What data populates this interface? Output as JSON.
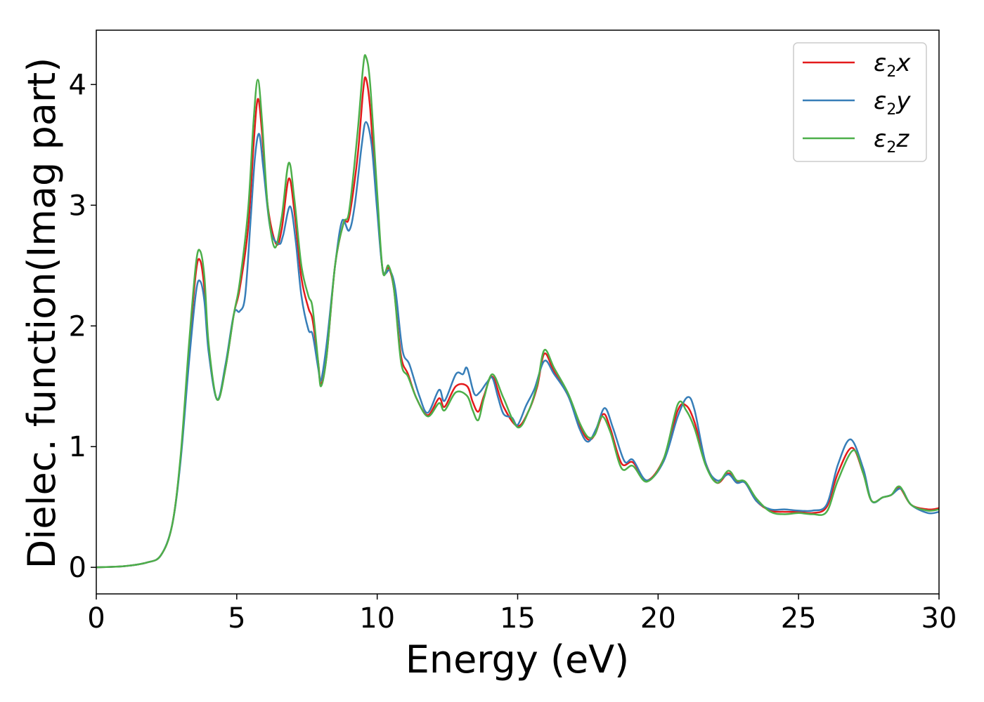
{
  "chart_data": {
    "type": "line",
    "xlabel": "Energy (eV)",
    "ylabel": "Dielec. function(Imag part)",
    "xlim": [
      0,
      30
    ],
    "ylim": [
      -0.22,
      4.45
    ],
    "xticks": [
      0,
      5,
      10,
      15,
      20,
      25,
      30
    ],
    "xtick_labels": [
      "0",
      "5",
      "10",
      "15",
      "20",
      "25",
      "30"
    ],
    "yticks": [
      0,
      1,
      2,
      3,
      4
    ],
    "ytick_labels": [
      "0",
      "1",
      "2",
      "3",
      "4"
    ],
    "grid": false,
    "legend_position": "top-right",
    "series": [
      {
        "name": "ε2x",
        "legend": {
          "base": "ε",
          "sub": "2",
          "suffix": "x"
        },
        "color": "#e41a1c",
        "points": [
          [
            0,
            0
          ],
          [
            1,
            0.01
          ],
          [
            1.8,
            0.04
          ],
          [
            2.3,
            0.1
          ],
          [
            2.7,
            0.35
          ],
          [
            3.0,
            0.9
          ],
          [
            3.3,
            1.8
          ],
          [
            3.55,
            2.45
          ],
          [
            3.7,
            2.54
          ],
          [
            3.85,
            2.3
          ],
          [
            4.0,
            1.8
          ],
          [
            4.3,
            1.39
          ],
          [
            4.6,
            1.65
          ],
          [
            4.9,
            2.1
          ],
          [
            5.1,
            2.3
          ],
          [
            5.4,
            2.8
          ],
          [
            5.6,
            3.5
          ],
          [
            5.75,
            3.88
          ],
          [
            5.9,
            3.6
          ],
          [
            6.1,
            3.0
          ],
          [
            6.4,
            2.68
          ],
          [
            6.6,
            2.8
          ],
          [
            6.85,
            3.22
          ],
          [
            7.05,
            2.95
          ],
          [
            7.3,
            2.4
          ],
          [
            7.55,
            2.15
          ],
          [
            7.7,
            2.05
          ],
          [
            7.9,
            1.7
          ],
          [
            8.0,
            1.52
          ],
          [
            8.2,
            1.75
          ],
          [
            8.5,
            2.5
          ],
          [
            8.8,
            2.85
          ],
          [
            9.0,
            2.9
          ],
          [
            9.3,
            3.4
          ],
          [
            9.5,
            3.95
          ],
          [
            9.6,
            4.05
          ],
          [
            9.75,
            3.8
          ],
          [
            10.0,
            3.0
          ],
          [
            10.2,
            2.45
          ],
          [
            10.4,
            2.48
          ],
          [
            10.6,
            2.3
          ],
          [
            10.85,
            1.75
          ],
          [
            11.1,
            1.6
          ],
          [
            11.4,
            1.4
          ],
          [
            11.8,
            1.26
          ],
          [
            12.2,
            1.4
          ],
          [
            12.4,
            1.33
          ],
          [
            12.8,
            1.5
          ],
          [
            13.2,
            1.5
          ],
          [
            13.4,
            1.37
          ],
          [
            13.6,
            1.29
          ],
          [
            13.8,
            1.42
          ],
          [
            14.1,
            1.58
          ],
          [
            14.5,
            1.33
          ],
          [
            15.0,
            1.17
          ],
          [
            15.4,
            1.3
          ],
          [
            15.7,
            1.5
          ],
          [
            15.95,
            1.77
          ],
          [
            16.3,
            1.62
          ],
          [
            16.8,
            1.42
          ],
          [
            17.2,
            1.18
          ],
          [
            17.5,
            1.06
          ],
          [
            17.75,
            1.1
          ],
          [
            18.05,
            1.27
          ],
          [
            18.3,
            1.15
          ],
          [
            18.7,
            0.86
          ],
          [
            19.1,
            0.87
          ],
          [
            19.6,
            0.72
          ],
          [
            20.2,
            0.9
          ],
          [
            20.7,
            1.3
          ],
          [
            21.0,
            1.34
          ],
          [
            21.3,
            1.2
          ],
          [
            21.7,
            0.86
          ],
          [
            22.1,
            0.7
          ],
          [
            22.5,
            0.78
          ],
          [
            22.8,
            0.71
          ],
          [
            23.1,
            0.7
          ],
          [
            23.5,
            0.55
          ],
          [
            24.0,
            0.47
          ],
          [
            24.5,
            0.46
          ],
          [
            25.0,
            0.46
          ],
          [
            25.5,
            0.45
          ],
          [
            26.0,
            0.5
          ],
          [
            26.4,
            0.78
          ],
          [
            26.9,
            0.99
          ],
          [
            27.3,
            0.78
          ],
          [
            27.6,
            0.55
          ],
          [
            28.0,
            0.58
          ],
          [
            28.3,
            0.6
          ],
          [
            28.6,
            0.66
          ],
          [
            29.0,
            0.52
          ],
          [
            29.6,
            0.48
          ],
          [
            30,
            0.49
          ]
        ]
      },
      {
        "name": "ε2y",
        "legend": {
          "base": "ε",
          "sub": "2",
          "suffix": "y"
        },
        "color": "#377eb8",
        "points": [
          [
            0,
            0
          ],
          [
            1,
            0.01
          ],
          [
            1.8,
            0.04
          ],
          [
            2.3,
            0.1
          ],
          [
            2.7,
            0.35
          ],
          [
            3.0,
            0.88
          ],
          [
            3.3,
            1.7
          ],
          [
            3.55,
            2.28
          ],
          [
            3.7,
            2.37
          ],
          [
            3.85,
            2.2
          ],
          [
            4.0,
            1.78
          ],
          [
            4.3,
            1.39
          ],
          [
            4.6,
            1.68
          ],
          [
            4.9,
            2.1
          ],
          [
            5.1,
            2.12
          ],
          [
            5.3,
            2.25
          ],
          [
            5.5,
            2.9
          ],
          [
            5.65,
            3.4
          ],
          [
            5.8,
            3.59
          ],
          [
            5.95,
            3.3
          ],
          [
            6.2,
            2.8
          ],
          [
            6.5,
            2.68
          ],
          [
            6.65,
            2.75
          ],
          [
            6.9,
            2.99
          ],
          [
            7.1,
            2.7
          ],
          [
            7.3,
            2.25
          ],
          [
            7.55,
            1.97
          ],
          [
            7.7,
            1.93
          ],
          [
            7.9,
            1.65
          ],
          [
            8.0,
            1.55
          ],
          [
            8.2,
            1.85
          ],
          [
            8.5,
            2.5
          ],
          [
            8.75,
            2.87
          ],
          [
            9.0,
            2.79
          ],
          [
            9.2,
            3.0
          ],
          [
            9.45,
            3.5
          ],
          [
            9.6,
            3.69
          ],
          [
            9.8,
            3.5
          ],
          [
            10.0,
            2.95
          ],
          [
            10.2,
            2.46
          ],
          [
            10.45,
            2.46
          ],
          [
            10.65,
            2.3
          ],
          [
            10.9,
            1.8
          ],
          [
            11.15,
            1.68
          ],
          [
            11.5,
            1.42
          ],
          [
            11.8,
            1.28
          ],
          [
            12.2,
            1.47
          ],
          [
            12.4,
            1.38
          ],
          [
            12.8,
            1.6
          ],
          [
            13.05,
            1.6
          ],
          [
            13.2,
            1.65
          ],
          [
            13.45,
            1.44
          ],
          [
            13.65,
            1.45
          ],
          [
            13.9,
            1.53
          ],
          [
            14.1,
            1.57
          ],
          [
            14.3,
            1.41
          ],
          [
            14.5,
            1.27
          ],
          [
            14.8,
            1.24
          ],
          [
            15.0,
            1.18
          ],
          [
            15.3,
            1.34
          ],
          [
            15.6,
            1.48
          ],
          [
            15.95,
            1.71
          ],
          [
            16.3,
            1.6
          ],
          [
            16.8,
            1.42
          ],
          [
            17.2,
            1.15
          ],
          [
            17.5,
            1.04
          ],
          [
            17.8,
            1.15
          ],
          [
            18.1,
            1.32
          ],
          [
            18.4,
            1.15
          ],
          [
            18.8,
            0.88
          ],
          [
            19.1,
            0.89
          ],
          [
            19.6,
            0.72
          ],
          [
            20.2,
            0.88
          ],
          [
            20.7,
            1.25
          ],
          [
            21.05,
            1.41
          ],
          [
            21.3,
            1.3
          ],
          [
            21.7,
            0.86
          ],
          [
            22.1,
            0.72
          ],
          [
            22.5,
            0.77
          ],
          [
            22.8,
            0.7
          ],
          [
            23.1,
            0.7
          ],
          [
            23.5,
            0.55
          ],
          [
            24.0,
            0.48
          ],
          [
            24.5,
            0.48
          ],
          [
            25.0,
            0.47
          ],
          [
            25.5,
            0.47
          ],
          [
            26.0,
            0.52
          ],
          [
            26.4,
            0.85
          ],
          [
            26.85,
            1.06
          ],
          [
            27.3,
            0.82
          ],
          [
            27.6,
            0.55
          ],
          [
            28.0,
            0.58
          ],
          [
            28.3,
            0.6
          ],
          [
            28.65,
            0.65
          ],
          [
            29.0,
            0.52
          ],
          [
            29.6,
            0.45
          ],
          [
            30,
            0.46
          ]
        ]
      },
      {
        "name": "ε2z",
        "legend": {
          "base": "ε",
          "sub": "2",
          "suffix": "z"
        },
        "color": "#4daf4a",
        "points": [
          [
            0,
            0
          ],
          [
            1,
            0.01
          ],
          [
            1.8,
            0.04
          ],
          [
            2.3,
            0.1
          ],
          [
            2.7,
            0.35
          ],
          [
            3.0,
            0.92
          ],
          [
            3.3,
            1.85
          ],
          [
            3.55,
            2.52
          ],
          [
            3.7,
            2.62
          ],
          [
            3.85,
            2.4
          ],
          [
            4.0,
            1.85
          ],
          [
            4.3,
            1.39
          ],
          [
            4.6,
            1.65
          ],
          [
            4.9,
            2.1
          ],
          [
            5.1,
            2.35
          ],
          [
            5.4,
            2.95
          ],
          [
            5.6,
            3.7
          ],
          [
            5.75,
            4.04
          ],
          [
            5.9,
            3.7
          ],
          [
            6.1,
            3.0
          ],
          [
            6.35,
            2.65
          ],
          [
            6.6,
            2.9
          ],
          [
            6.85,
            3.35
          ],
          [
            7.05,
            3.05
          ],
          [
            7.3,
            2.5
          ],
          [
            7.55,
            2.25
          ],
          [
            7.7,
            2.15
          ],
          [
            7.9,
            1.7
          ],
          [
            8.0,
            1.5
          ],
          [
            8.2,
            1.75
          ],
          [
            8.5,
            2.5
          ],
          [
            8.8,
            2.85
          ],
          [
            9.0,
            2.95
          ],
          [
            9.3,
            3.6
          ],
          [
            9.5,
            4.15
          ],
          [
            9.6,
            4.23
          ],
          [
            9.75,
            4.0
          ],
          [
            10.0,
            3.1
          ],
          [
            10.2,
            2.45
          ],
          [
            10.4,
            2.5
          ],
          [
            10.6,
            2.3
          ],
          [
            10.85,
            1.7
          ],
          [
            11.1,
            1.58
          ],
          [
            11.4,
            1.4
          ],
          [
            11.8,
            1.25
          ],
          [
            12.2,
            1.36
          ],
          [
            12.4,
            1.3
          ],
          [
            12.8,
            1.45
          ],
          [
            13.2,
            1.42
          ],
          [
            13.4,
            1.3
          ],
          [
            13.6,
            1.22
          ],
          [
            13.8,
            1.4
          ],
          [
            14.1,
            1.6
          ],
          [
            14.5,
            1.4
          ],
          [
            15.0,
            1.16
          ],
          [
            15.4,
            1.3
          ],
          [
            15.7,
            1.52
          ],
          [
            15.95,
            1.8
          ],
          [
            16.3,
            1.65
          ],
          [
            16.8,
            1.44
          ],
          [
            17.2,
            1.2
          ],
          [
            17.5,
            1.08
          ],
          [
            17.75,
            1.1
          ],
          [
            18.0,
            1.25
          ],
          [
            18.3,
            1.12
          ],
          [
            18.7,
            0.82
          ],
          [
            19.1,
            0.84
          ],
          [
            19.6,
            0.71
          ],
          [
            20.2,
            0.9
          ],
          [
            20.7,
            1.35
          ],
          [
            21.0,
            1.3
          ],
          [
            21.3,
            1.15
          ],
          [
            21.7,
            0.84
          ],
          [
            22.1,
            0.7
          ],
          [
            22.5,
            0.8
          ],
          [
            22.8,
            0.72
          ],
          [
            23.1,
            0.71
          ],
          [
            23.5,
            0.57
          ],
          [
            24.0,
            0.46
          ],
          [
            24.5,
            0.44
          ],
          [
            25.0,
            0.45
          ],
          [
            25.5,
            0.44
          ],
          [
            26.0,
            0.46
          ],
          [
            26.4,
            0.72
          ],
          [
            26.95,
            0.97
          ],
          [
            27.3,
            0.78
          ],
          [
            27.6,
            0.55
          ],
          [
            28.0,
            0.58
          ],
          [
            28.3,
            0.6
          ],
          [
            28.6,
            0.67
          ],
          [
            29.0,
            0.52
          ],
          [
            29.6,
            0.47
          ],
          [
            30,
            0.48
          ]
        ]
      }
    ]
  }
}
